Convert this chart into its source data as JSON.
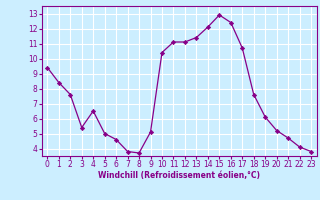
{
  "x": [
    0,
    1,
    2,
    3,
    4,
    5,
    6,
    7,
    8,
    9,
    10,
    11,
    12,
    13,
    14,
    15,
    16,
    17,
    18,
    19,
    20,
    21,
    22,
    23
  ],
  "y": [
    9.4,
    8.4,
    7.6,
    5.4,
    6.5,
    5.0,
    4.6,
    3.8,
    3.7,
    5.1,
    10.4,
    11.1,
    11.1,
    11.4,
    12.1,
    12.9,
    12.4,
    10.7,
    7.6,
    6.1,
    5.2,
    4.7,
    4.1,
    3.8
  ],
  "line_color": "#880088",
  "marker": "D",
  "marker_size": 2.2,
  "bg_color": "#cceeff",
  "grid_color": "#ffffff",
  "xlabel": "Windchill (Refroidissement éolien,°C)",
  "xlabel_color": "#880088",
  "tick_color": "#880088",
  "ylim": [
    3.5,
    13.5
  ],
  "xlim": [
    -0.5,
    23.5
  ],
  "yticks": [
    4,
    5,
    6,
    7,
    8,
    9,
    10,
    11,
    12,
    13
  ],
  "xticks": [
    0,
    1,
    2,
    3,
    4,
    5,
    6,
    7,
    8,
    9,
    10,
    11,
    12,
    13,
    14,
    15,
    16,
    17,
    18,
    19,
    20,
    21,
    22,
    23
  ],
  "spine_color": "#880088",
  "figsize": [
    3.2,
    2.0
  ],
  "dpi": 100
}
